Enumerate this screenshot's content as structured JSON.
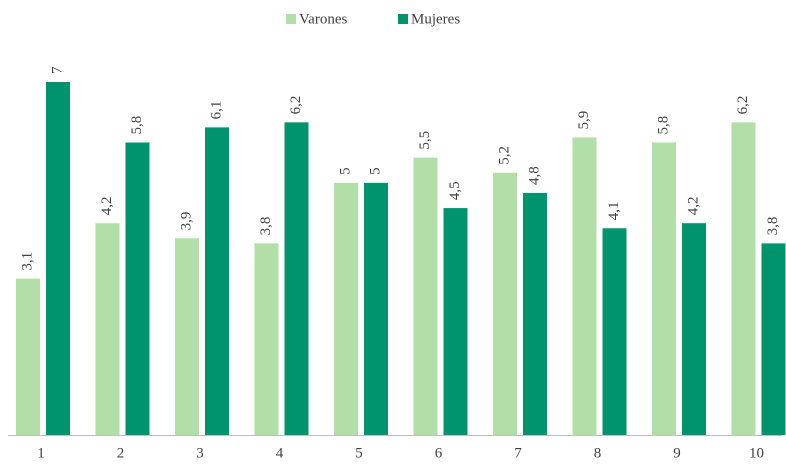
{
  "chart_data": {
    "type": "bar",
    "categories": [
      "1",
      "2",
      "3",
      "4",
      "5",
      "6",
      "7",
      "8",
      "9",
      "10"
    ],
    "series": [
      {
        "name": "Varones",
        "color": "#b2dfa7",
        "values": [
          3.1,
          4.2,
          3.9,
          3.8,
          5,
          5.5,
          5.2,
          5.9,
          5.8,
          6.2
        ],
        "value_labels": [
          "3,1",
          "4,2",
          "3,9",
          "3,8",
          "5",
          "5,5",
          "5,2",
          "5,9",
          "5,8",
          "6,2"
        ]
      },
      {
        "name": "Mujeres",
        "color": "#00946e",
        "values": [
          7,
          5.8,
          6.1,
          6.2,
          5,
          4.5,
          4.8,
          4.1,
          4.2,
          3.8
        ],
        "value_labels": [
          "7",
          "5,8",
          "6,1",
          "6,2",
          "5",
          "4,5",
          "4,8",
          "4,1",
          "4,2",
          "3,8"
        ]
      }
    ],
    "ylim": [
      0,
      7
    ],
    "legend": "top"
  }
}
